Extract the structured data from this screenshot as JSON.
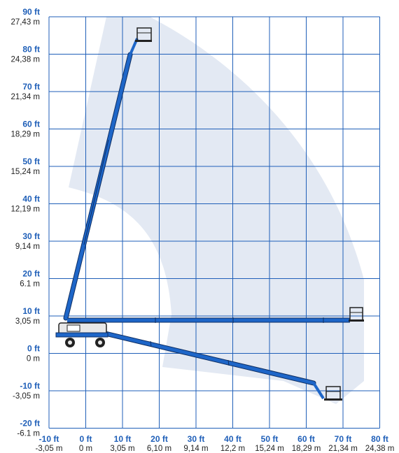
{
  "colors": {
    "background": "#ffffff",
    "grid": "#1f5fb8",
    "envelope": "#e3e9f3",
    "boom": "#1e66c8",
    "boom_outline": "#0f2f63",
    "label_ft": "#1f5fb8",
    "label_m": "#222222",
    "platform": "#222222",
    "machine_body": "#e8e8e8"
  },
  "icons": {
    "machine": "boom-lift-chassis-icon",
    "platform": "work-platform-icon"
  },
  "y_axis": {
    "ticks": [
      {
        "ft": "90 ft",
        "m": "27,43 m"
      },
      {
        "ft": "80 ft",
        "m": "24,38 m"
      },
      {
        "ft": "70 ft",
        "m": "21,34 m"
      },
      {
        "ft": "60 ft",
        "m": "18,29 m"
      },
      {
        "ft": "50 ft",
        "m": "15,24 m"
      },
      {
        "ft": "40 ft",
        "m": "12,19 m"
      },
      {
        "ft": "30 ft",
        "m": "9,14 m"
      },
      {
        "ft": "20 ft",
        "m": "6.1 m"
      },
      {
        "ft": "10 ft",
        "m": "3,05 m"
      },
      {
        "ft": "0 ft",
        "m": "0 m"
      },
      {
        "ft": "-10 ft",
        "m": "-3,05 m"
      },
      {
        "ft": "-20 ft",
        "m": "-6.1 m"
      }
    ]
  },
  "x_axis": {
    "ticks": [
      {
        "ft": "-10 ft",
        "m": "-3,05 m"
      },
      {
        "ft": "0 ft",
        "m": "0 m"
      },
      {
        "ft": "10 ft",
        "m": "3,05 m"
      },
      {
        "ft": "20 ft",
        "m": "6,10 m"
      },
      {
        "ft": "30 ft",
        "m": "9,14 m"
      },
      {
        "ft": "40 ft",
        "m": "12,2 m"
      },
      {
        "ft": "50 ft",
        "m": "15,24 m"
      },
      {
        "ft": "60 ft",
        "m": "18,29 m"
      },
      {
        "ft": "70 ft",
        "m": "21,34 m"
      },
      {
        "ft": "80 ft",
        "m": "24,38 m"
      }
    ]
  },
  "booms": [
    {
      "position": "vertical",
      "base_ft": [
        -5,
        10
      ],
      "tip_ft": [
        12,
        84
      ]
    },
    {
      "position": "horizontal",
      "base_ft": [
        -5,
        9
      ],
      "tip_ft": [
        75,
        9
      ]
    },
    {
      "position": "below-grade",
      "base_ft": [
        -5,
        5
      ],
      "tip_ft": [
        65,
        -12
      ]
    }
  ]
}
